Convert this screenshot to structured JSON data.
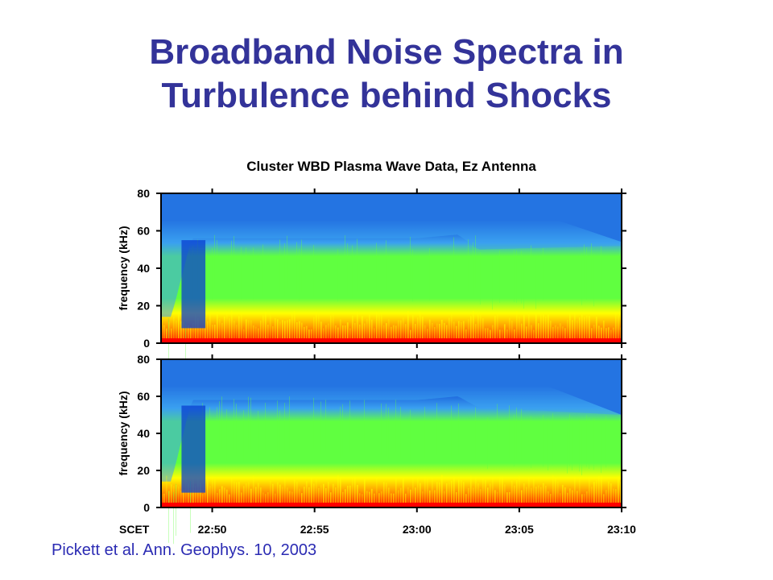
{
  "slide": {
    "title_line1": "Broadband Noise Spectra in",
    "title_line2": "Turbulence behind Shocks",
    "citation": "Pickett et al. Ann. Geophys. 10, 2003",
    "title_color": "#333399",
    "citation_color": "#2b2bb3"
  },
  "chart_data": {
    "type": "heatmap",
    "title": "Cluster WBD Plasma Wave Data, Ez Antenna",
    "ylabel": "frequency (kHz)",
    "x_axis_label": "SCET",
    "x_ticks": [
      "22:50",
      "22:55",
      "23:00",
      "23:05",
      "23:10"
    ],
    "y_ticks": [
      "0",
      "20",
      "40",
      "60",
      "80"
    ],
    "ylim": [
      0,
      80
    ],
    "xlim": [
      "22:47:30",
      "23:10"
    ],
    "colormap": [
      "#000033",
      "#0a3fd0",
      "#3aa0f0",
      "#60ff40",
      "#ffff00",
      "#ff9000",
      "#ff0000"
    ],
    "panels": [
      {
        "green_band_upper_kHz": [
          {
            "t": "22:48",
            "f": 8
          },
          {
            "t": "22:49",
            "f": 50
          },
          {
            "t": "23:00",
            "f": 50
          },
          {
            "t": "23:02",
            "f": 52
          },
          {
            "t": "23:03",
            "f": 44
          },
          {
            "t": "23:10",
            "f": 46
          }
        ],
        "blue_band_upper_kHz": [
          {
            "t": "22:48",
            "f": 80
          },
          {
            "t": "23:03",
            "f": 80
          },
          {
            "t": "23:10",
            "f": 54
          }
        ]
      },
      {
        "green_band_upper_kHz": [
          {
            "t": "22:48",
            "f": 8
          },
          {
            "t": "22:49",
            "f": 52
          },
          {
            "t": "23:00",
            "f": 52
          },
          {
            "t": "23:02",
            "f": 54
          },
          {
            "t": "23:03",
            "f": 48
          },
          {
            "t": "23:10",
            "f": 44
          }
        ],
        "blue_band_upper_kHz": [
          {
            "t": "22:48",
            "f": 80
          },
          {
            "t": "23:03",
            "f": 80
          },
          {
            "t": "23:10",
            "f": 50
          }
        ]
      }
    ]
  }
}
